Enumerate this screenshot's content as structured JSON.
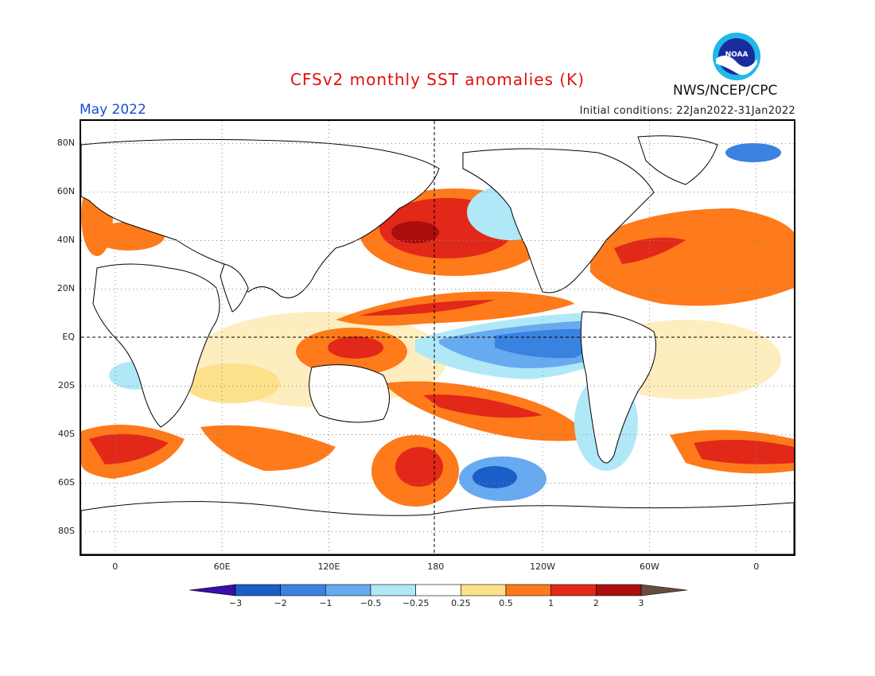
{
  "header": {
    "title": "CFSv2 monthly SST anomalies (K)",
    "valid_month": "May 2022",
    "initial_conditions": "Initial conditions: 22Jan2022-31Jan2022",
    "agency": "NWS/NCEP/CPC",
    "logo_text": "NOAA"
  },
  "map": {
    "lat_labels": [
      "80N",
      "60N",
      "40N",
      "20N",
      "EQ",
      "20S",
      "40S",
      "60S",
      "80S"
    ],
    "lon_labels": [
      "0",
      "60E",
      "120E",
      "180",
      "120W",
      "60W",
      "0"
    ],
    "lon_range": [
      -20,
      382
    ],
    "lat_range": [
      -90,
      90
    ]
  },
  "legend": {
    "ticks": [
      "−3",
      "−2",
      "−1",
      "−0.5",
      "−0.25",
      "0.25",
      "0.5",
      "1",
      "2",
      "3"
    ],
    "colors": [
      "#3a0ea8",
      "#1a5ec8",
      "#3a82e0",
      "#68aaf0",
      "#b0e8f8",
      "#ffffff",
      "#fde08a",
      "#fe7a1a",
      "#e22818",
      "#aa0e0e",
      "#6a4a3e"
    ]
  }
}
